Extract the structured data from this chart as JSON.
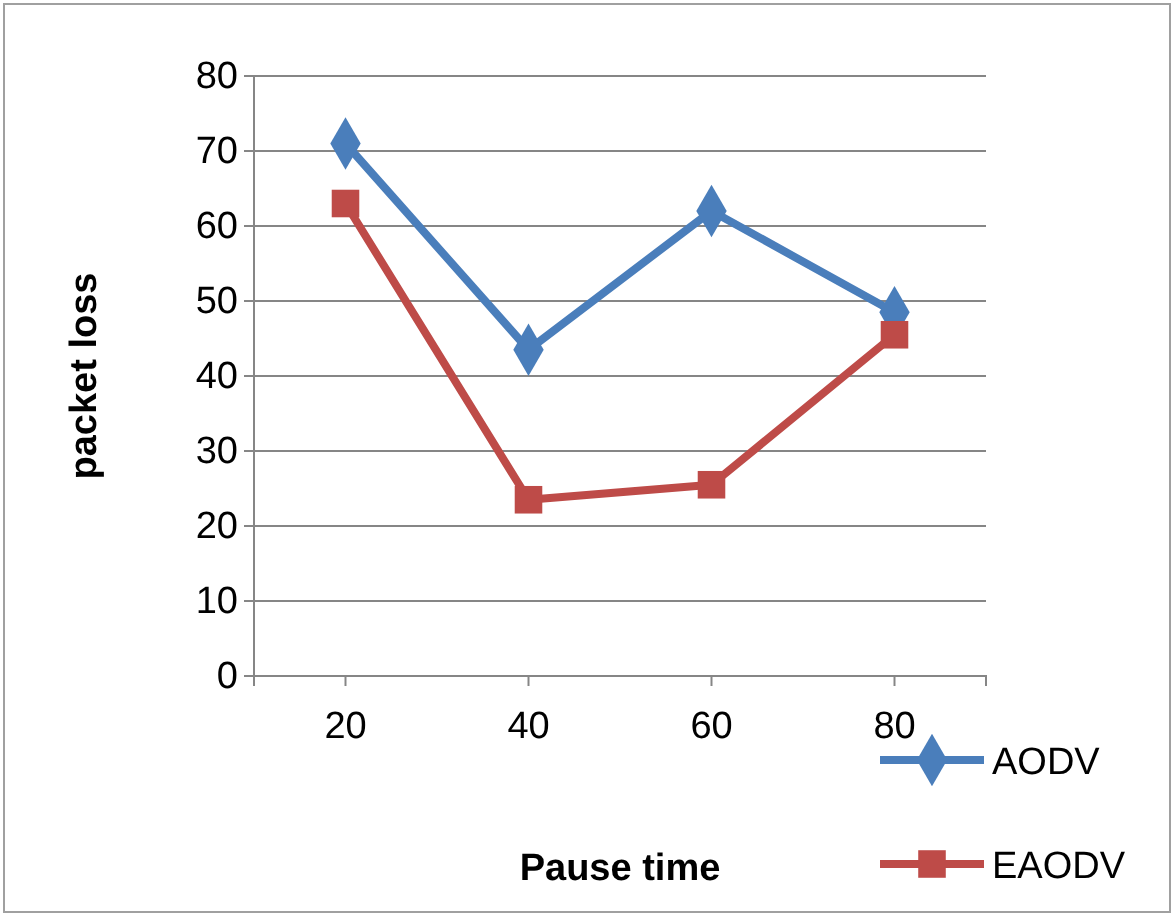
{
  "chart_data": {
    "type": "line",
    "xlabel": "Pause time",
    "ylabel": "packet loss",
    "categories": [
      "20",
      "40",
      "60",
      "80"
    ],
    "series": [
      {
        "name": "AODV",
        "color": "#4a7ebb",
        "marker": "diamond",
        "values": [
          71,
          43.5,
          62,
          48.5
        ]
      },
      {
        "name": "EAODV",
        "color": "#be4b48",
        "marker": "square",
        "values": [
          63,
          23.5,
          25.5,
          45.5
        ]
      }
    ],
    "ylim": [
      0,
      80
    ],
    "yticks": [
      0,
      10,
      20,
      30,
      40,
      50,
      60,
      70,
      80
    ],
    "grid": "y",
    "legend": "bottom right",
    "line_style": "solid"
  }
}
